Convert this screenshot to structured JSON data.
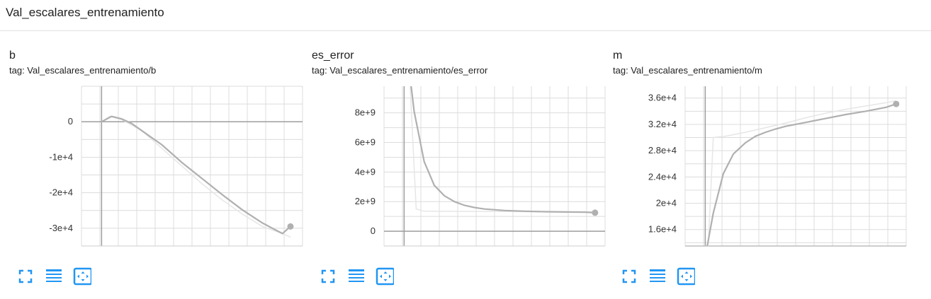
{
  "group": {
    "title": "Val_escalares_entrenamiento"
  },
  "accent_color": "#2196f3",
  "line_color": "#b0b0b0",
  "smoothed_out_color": "#e6e6e6",
  "toolbar_icons": [
    "expand-icon",
    "toggle-log-scale-icon",
    "fit-domain-icon"
  ],
  "cards": [
    {
      "title": "b",
      "tag": "tag: Val_escalares_entrenamiento/b"
    },
    {
      "title": "es_error",
      "tag": "tag: Val_escalares_entrenamiento/es_error"
    },
    {
      "title": "m",
      "tag": "tag: Val_escalares_entrenamiento/m"
    }
  ],
  "chart_data": [
    {
      "type": "line",
      "title": "b",
      "xlim": [
        -1,
        10
      ],
      "ylim": [
        -35000,
        10000
      ],
      "yticks": [
        0,
        -10000,
        -20000,
        -30000
      ],
      "ytick_labels": [
        "0",
        "-1e+4",
        "-2e+4",
        "-3e+4"
      ],
      "grid": true,
      "series": [
        {
          "x": [
            0,
            0.4,
            1,
            2,
            3,
            4,
            5,
            6,
            7,
            8,
            9,
            9.4
          ],
          "y": [
            0,
            1500,
            600,
            -2500,
            -7500,
            -12500,
            -17500,
            -22000,
            -26000,
            -29500,
            -31500,
            -32500
          ]
        },
        {
          "x": [
            0,
            0.5,
            1,
            1.5,
            2,
            3,
            4,
            5,
            6,
            7,
            8,
            9,
            9.4
          ],
          "y": [
            0,
            1500,
            800,
            -500,
            -2500,
            -6500,
            -11500,
            -16000,
            -20500,
            -24800,
            -28500,
            -31500,
            -29500
          ]
        }
      ]
    },
    {
      "type": "line",
      "title": "es_error",
      "xlim": [
        -1,
        10
      ],
      "ylim": [
        -1000000000,
        9800000000
      ],
      "yticks": [
        0,
        2000000000,
        4000000000,
        6000000000,
        8000000000
      ],
      "ytick_labels": [
        "0",
        "2e+9",
        "4e+9",
        "6e+9",
        "8e+9"
      ],
      "grid": true,
      "series": [
        {
          "x": [
            0.3,
            0.6,
            1,
            9.5
          ],
          "y": [
            9800000000,
            1500000000,
            1350000000,
            1300000000
          ]
        },
        {
          "x": [
            0.35,
            0.5,
            1,
            1.5,
            2,
            2.5,
            3,
            3.5,
            4,
            5,
            6,
            7,
            8,
            9,
            9.5
          ],
          "y": [
            9800000000,
            8100000000,
            4700000000,
            3100000000,
            2400000000,
            2000000000,
            1750000000,
            1600000000,
            1500000000,
            1400000000,
            1350000000,
            1320000000,
            1300000000,
            1290000000,
            1250000000
          ]
        }
      ]
    },
    {
      "type": "line",
      "title": "m",
      "xlim": [
        -1,
        10
      ],
      "ylim": [
        13500,
        37800
      ],
      "yticks": [
        16000,
        20000,
        24000,
        28000,
        32000,
        36000
      ],
      "ytick_labels": [
        "1.6e+4",
        "2e+4",
        "2.4e+4",
        "2.8e+4",
        "3.2e+4",
        "3.6e+4"
      ],
      "grid": true,
      "series": [
        {
          "x": [
            0.15,
            0.4,
            1,
            2,
            3,
            4,
            5,
            6,
            7,
            8,
            9,
            9.5
          ],
          "y": [
            13500,
            30000,
            30200,
            30800,
            31500,
            32200,
            33000,
            33700,
            34300,
            34800,
            35300,
            35600
          ]
        },
        {
          "x": [
            0.1,
            0.4,
            0.9,
            1.4,
            2,
            2.5,
            3,
            3.5,
            4,
            5,
            6,
            7,
            8,
            9,
            9.5
          ],
          "y": [
            13500,
            18500,
            24500,
            27500,
            29200,
            30200,
            30800,
            31300,
            31700,
            32300,
            32900,
            33500,
            34000,
            34600,
            35100
          ]
        }
      ]
    }
  ]
}
